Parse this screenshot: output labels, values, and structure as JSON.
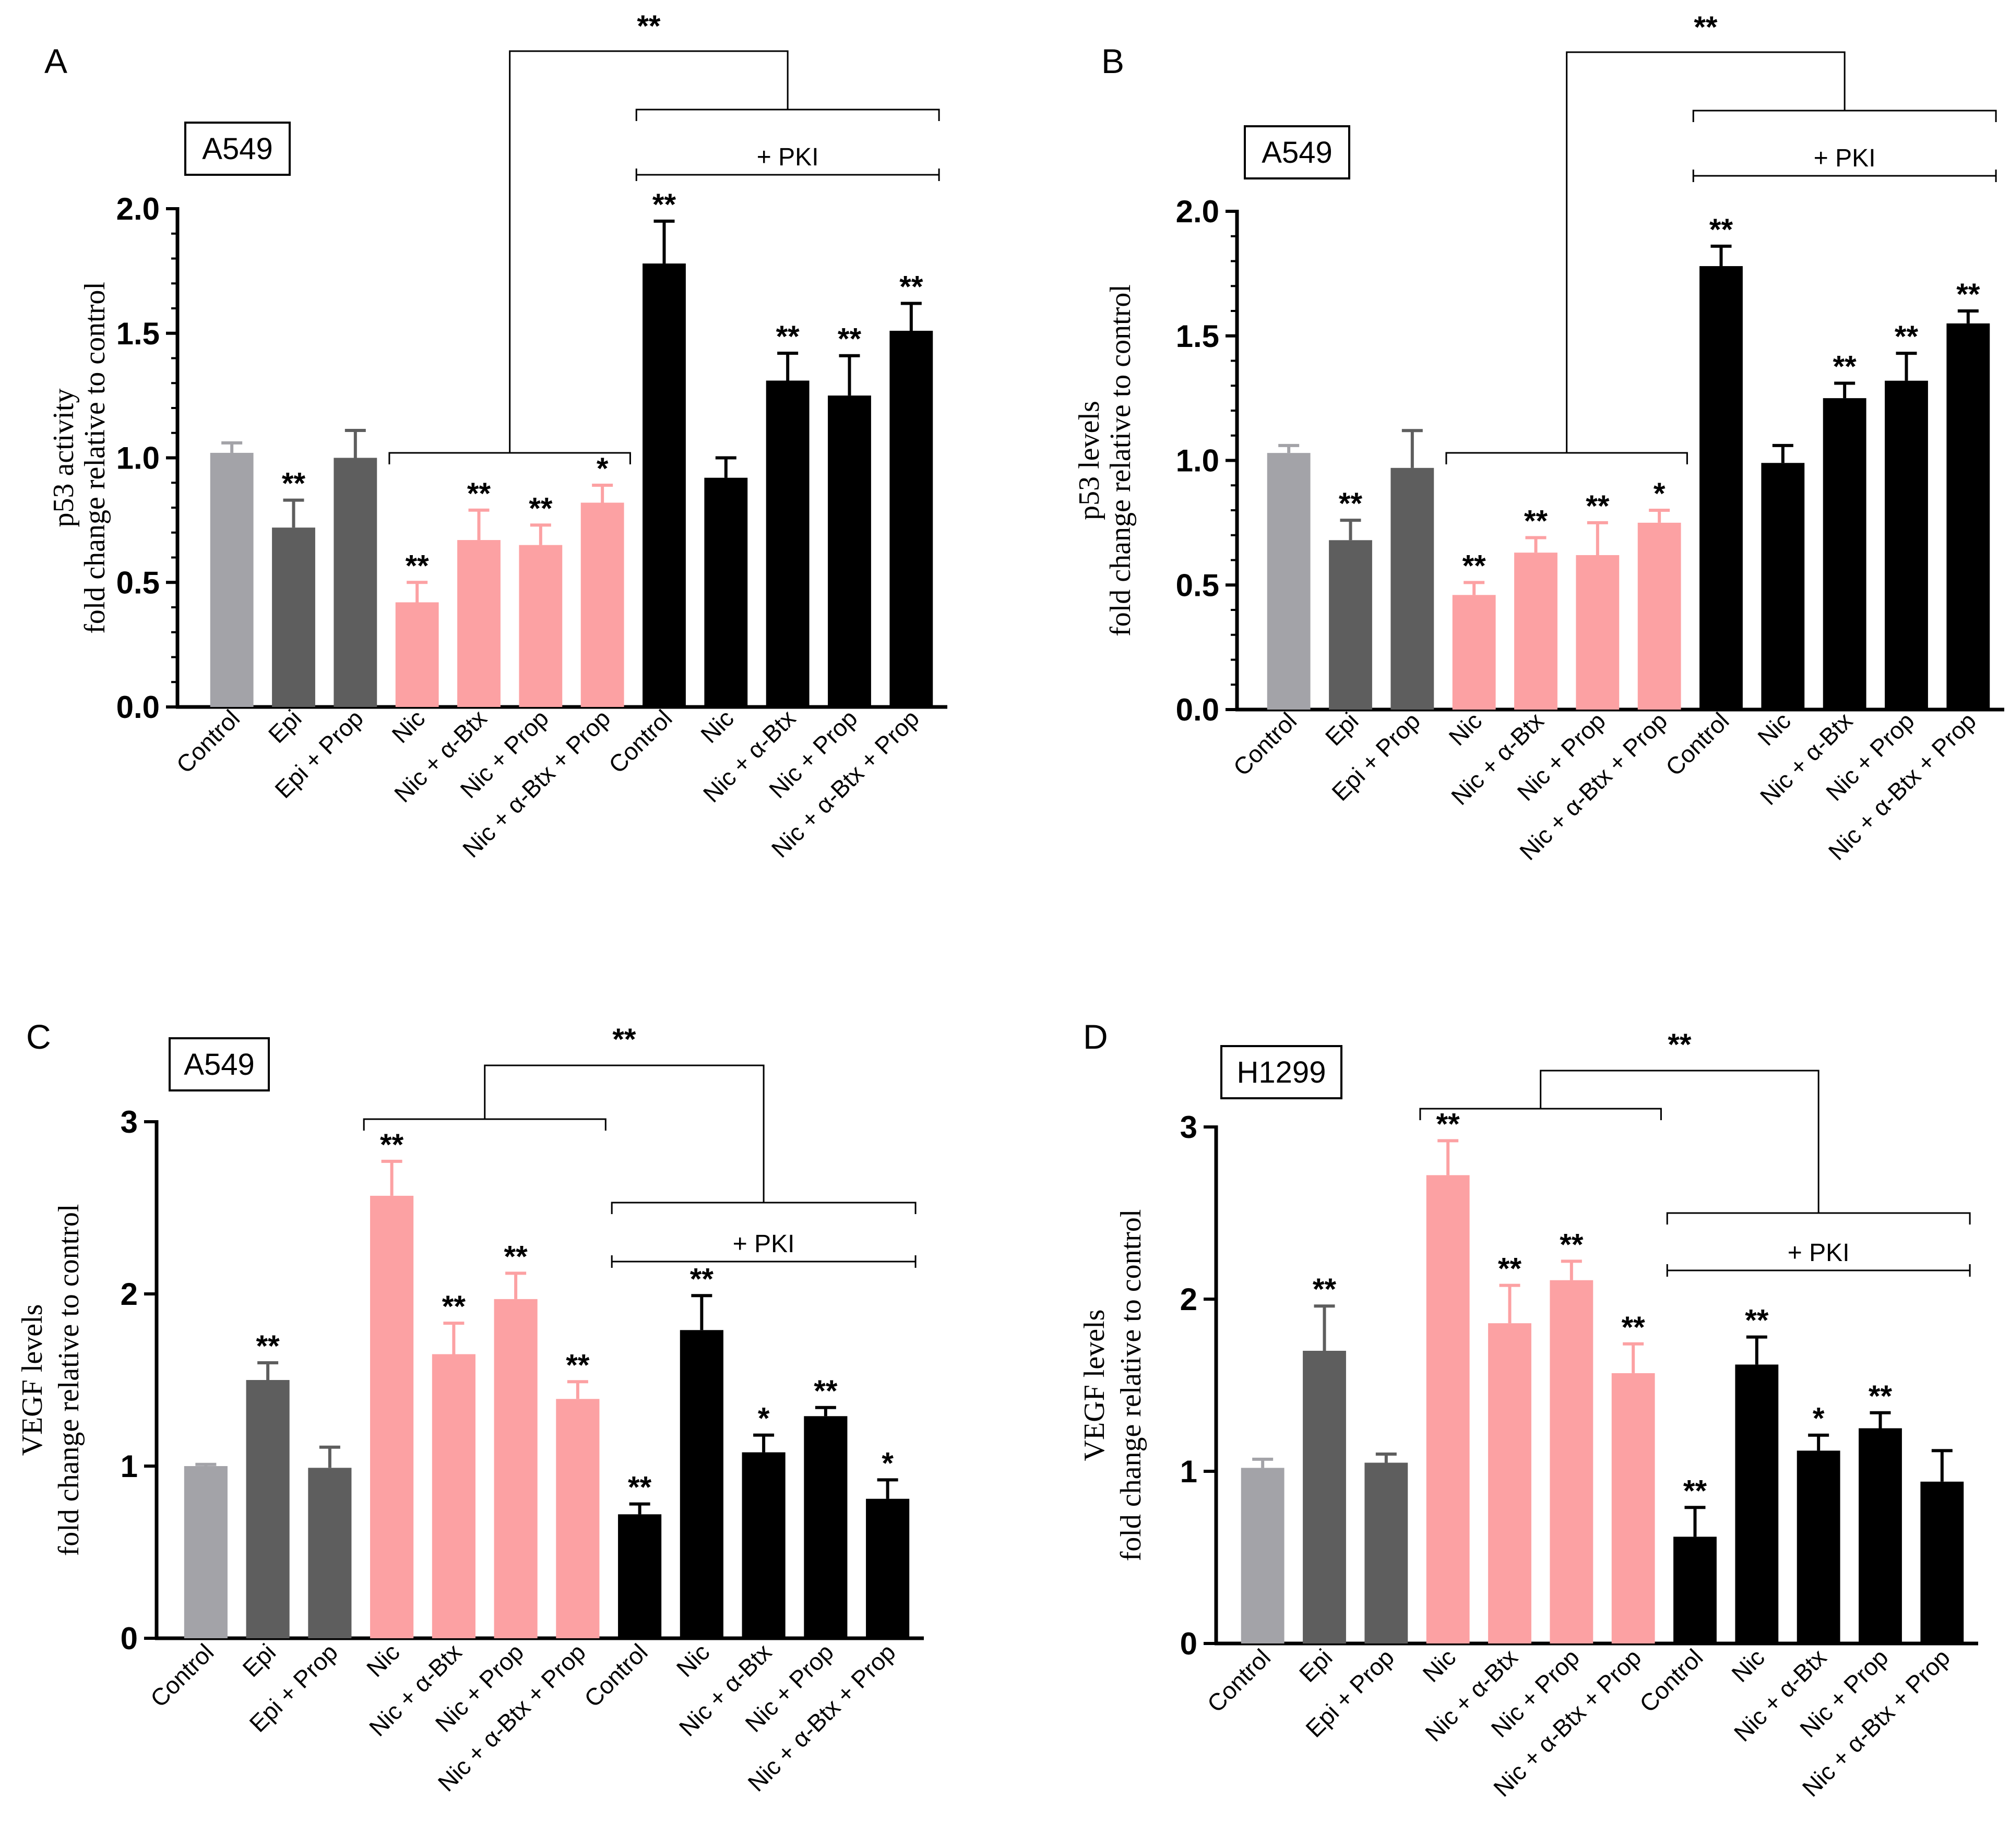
{
  "colors": {
    "control": "#a3a3a8",
    "epi": "#5e5e5e",
    "nic": "#fca1a3",
    "pki": "#000000"
  },
  "chart_data": [
    {
      "type": "bar",
      "panel_label": "A",
      "cell_line": "A549",
      "ylabel": [
        "p53 activity",
        "fold change relative to control"
      ],
      "ylim": [
        0,
        2.0
      ],
      "yticks": [
        "0.0",
        "0.5",
        "1.0",
        "1.5",
        "2.0"
      ],
      "categories": [
        "Control",
        "Epi",
        "Epi + Prop",
        "Nic",
        "Nic + α-Btx",
        "Nic + Prop",
        "Nic + α-Btx + Prop",
        "Control",
        "Nic",
        "Nic + α-Btx",
        "Nic + Prop",
        "Nic + α-Btx + Prop"
      ],
      "values": [
        1.02,
        0.72,
        1.0,
        0.42,
        0.67,
        0.65,
        0.82,
        1.78,
        0.92,
        1.31,
        1.25,
        1.51
      ],
      "errors": [
        0.04,
        0.11,
        0.11,
        0.08,
        0.12,
        0.08,
        0.07,
        0.17,
        0.08,
        0.11,
        0.16,
        0.11
      ],
      "bar_colors": [
        "control",
        "epi",
        "epi",
        "nic",
        "nic",
        "nic",
        "nic",
        "pki",
        "pki",
        "pki",
        "pki",
        "pki"
      ],
      "significance": [
        "",
        "**",
        "",
        "**",
        "**",
        "**",
        "*",
        "**",
        "",
        "**",
        "**",
        "**"
      ],
      "pki_label": "+ PKI",
      "comparison_label": "**"
    },
    {
      "type": "bar",
      "panel_label": "B",
      "cell_line": "A549",
      "ylabel": [
        "p53 levels",
        "fold change relative to control"
      ],
      "ylim": [
        0,
        2.0
      ],
      "yticks": [
        "0.0",
        "0.5",
        "1.0",
        "1.5",
        "2.0"
      ],
      "categories": [
        "Control",
        "Epi",
        "Epi + Prop",
        "Nic",
        "Nic + α-Btx",
        "Nic + Prop",
        "Nic + α-Btx + Prop",
        "Control",
        "Nic",
        "Nic + α-Btx",
        "Nic + Prop",
        "Nic + α-Btx + Prop"
      ],
      "values": [
        1.03,
        0.68,
        0.97,
        0.46,
        0.63,
        0.62,
        0.75,
        1.78,
        0.99,
        1.25,
        1.32,
        1.55
      ],
      "errors": [
        0.03,
        0.08,
        0.15,
        0.05,
        0.06,
        0.13,
        0.05,
        0.08,
        0.07,
        0.06,
        0.11,
        0.05
      ],
      "bar_colors": [
        "control",
        "epi",
        "epi",
        "nic",
        "nic",
        "nic",
        "nic",
        "pki",
        "pki",
        "pki",
        "pki",
        "pki"
      ],
      "significance": [
        "",
        "**",
        "",
        "**",
        "**",
        "**",
        "*",
        "**",
        "",
        "**",
        "**",
        "**"
      ],
      "pki_label": "+ PKI",
      "comparison_label": "**"
    },
    {
      "type": "bar",
      "panel_label": "C",
      "cell_line": "A549",
      "ylabel": [
        "VEGF levels",
        "fold change relative to control"
      ],
      "ylim": [
        0,
        3
      ],
      "yticks": [
        "0",
        "1",
        "2",
        "3"
      ],
      "categories": [
        "Control",
        "Epi",
        "Epi + Prop",
        "Nic",
        "Nic + α-Btx",
        "Nic + Prop",
        "Nic + α-Btx + Prop",
        "Control",
        "Nic",
        "Nic + α-Btx",
        "Nic + Prop",
        "Nic + α-Btx + Prop"
      ],
      "values": [
        1.0,
        1.5,
        0.99,
        2.57,
        1.65,
        1.97,
        1.39,
        0.72,
        1.79,
        1.08,
        1.29,
        0.81
      ],
      "errors": [
        0.01,
        0.1,
        0.12,
        0.2,
        0.18,
        0.15,
        0.1,
        0.06,
        0.2,
        0.1,
        0.05,
        0.11
      ],
      "bar_colors": [
        "control",
        "epi",
        "epi",
        "nic",
        "nic",
        "nic",
        "nic",
        "pki",
        "pki",
        "pki",
        "pki",
        "pki"
      ],
      "significance": [
        "",
        "**",
        "",
        "**",
        "**",
        "**",
        "**",
        "**",
        "**",
        "*",
        "**",
        "*"
      ],
      "pki_label": "+ PKI",
      "comparison_label": "**"
    },
    {
      "type": "bar",
      "panel_label": "D",
      "cell_line": "H1299",
      "ylabel": [
        "VEGF levels",
        "fold change relative to control"
      ],
      "ylim": [
        0,
        3
      ],
      "yticks": [
        "0",
        "1",
        "2",
        "3"
      ],
      "categories": [
        "Control",
        "Epi",
        "Epi + Prop",
        "Nic",
        "Nic + α-Btx",
        "Nic + Prop",
        "Nic + α-Btx + Prop",
        "Control",
        "Nic",
        "Nic + α-Btx",
        "Nic + Prop",
        "Nic + α-Btx + Prop"
      ],
      "values": [
        1.02,
        1.7,
        1.05,
        2.72,
        1.86,
        2.11,
        1.57,
        0.62,
        1.62,
        1.12,
        1.25,
        0.94
      ],
      "errors": [
        0.05,
        0.26,
        0.05,
        0.2,
        0.22,
        0.11,
        0.17,
        0.17,
        0.16,
        0.09,
        0.09,
        0.18
      ],
      "bar_colors": [
        "control",
        "epi",
        "epi",
        "nic",
        "nic",
        "nic",
        "nic",
        "pki",
        "pki",
        "pki",
        "pki",
        "pki"
      ],
      "significance": [
        "",
        "**",
        "",
        "**",
        "**",
        "**",
        "**",
        "**",
        "**",
        "*",
        "**",
        ""
      ],
      "pki_label": "+ PKI",
      "comparison_label": "**"
    }
  ]
}
